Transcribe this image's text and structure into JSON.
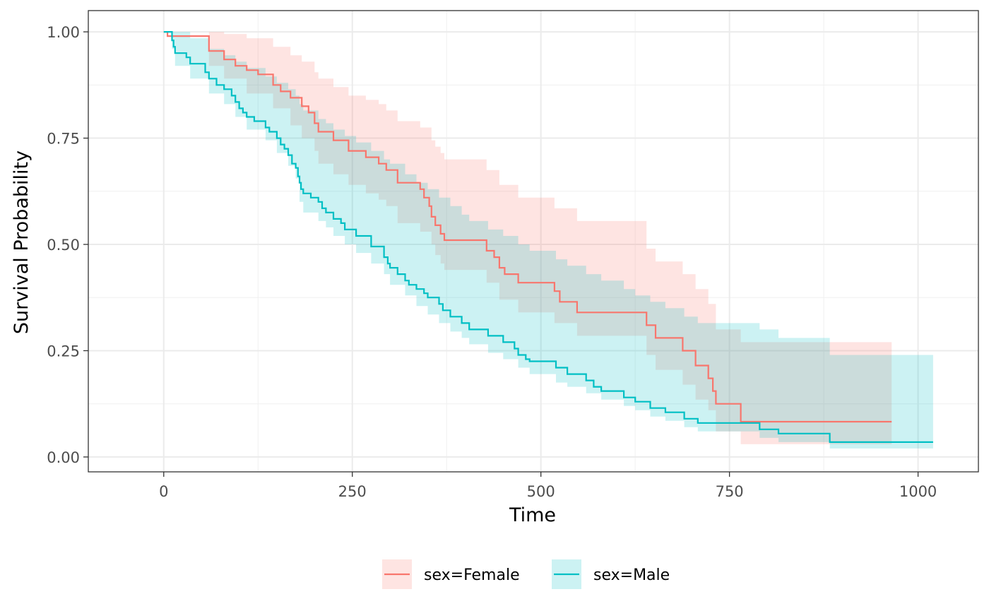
{
  "chart_data": {
    "type": "line",
    "subtype": "kaplan-meier-step",
    "title": "",
    "xlabel": "Time",
    "ylabel": "Survival Probability",
    "xlim": [
      -100,
      1080
    ],
    "ylim": [
      -0.035,
      1.05
    ],
    "x_ticks": [
      0,
      250,
      500,
      750,
      1000
    ],
    "x_tick_labels": [
      "0",
      "250",
      "500",
      "750",
      "1000"
    ],
    "y_ticks": [
      0,
      0.25,
      0.5,
      0.75,
      1
    ],
    "y_tick_labels": [
      "0.00",
      "0.25",
      "0.50",
      "0.75",
      "1.00"
    ],
    "grid": true,
    "legend_position": "bottom",
    "series": [
      {
        "name": "sex=Female",
        "color": "#F8766D",
        "fill_color": "#F8766D",
        "points": [
          [
            0,
            1.0
          ],
          [
            5,
            0.99
          ],
          [
            60,
            0.955
          ],
          [
            80,
            0.935
          ],
          [
            95,
            0.92
          ],
          [
            110,
            0.91
          ],
          [
            125,
            0.9
          ],
          [
            145,
            0.875
          ],
          [
            155,
            0.86
          ],
          [
            168,
            0.845
          ],
          [
            183,
            0.825
          ],
          [
            192,
            0.81
          ],
          [
            200,
            0.785
          ],
          [
            205,
            0.765
          ],
          [
            225,
            0.745
          ],
          [
            245,
            0.72
          ],
          [
            268,
            0.705
          ],
          [
            285,
            0.69
          ],
          [
            295,
            0.675
          ],
          [
            310,
            0.645
          ],
          [
            340,
            0.63
          ],
          [
            345,
            0.61
          ],
          [
            352,
            0.59
          ],
          [
            355,
            0.565
          ],
          [
            360,
            0.545
          ],
          [
            367,
            0.525
          ],
          [
            372,
            0.51
          ],
          [
            428,
            0.485
          ],
          [
            438,
            0.47
          ],
          [
            445,
            0.445
          ],
          [
            452,
            0.43
          ],
          [
            470,
            0.41
          ],
          [
            518,
            0.39
          ],
          [
            525,
            0.365
          ],
          [
            548,
            0.34
          ],
          [
            640,
            0.31
          ],
          [
            652,
            0.28
          ],
          [
            688,
            0.25
          ],
          [
            705,
            0.215
          ],
          [
            722,
            0.185
          ],
          [
            728,
            0.155
          ],
          [
            732,
            0.125
          ],
          [
            765,
            0.083
          ],
          [
            965,
            0.083
          ]
        ],
        "band": [
          [
            0,
            1.0,
            1.0
          ],
          [
            60,
            1.0,
            0.92
          ],
          [
            80,
            0.995,
            0.89
          ],
          [
            110,
            0.985,
            0.855
          ],
          [
            145,
            0.965,
            0.82
          ],
          [
            168,
            0.945,
            0.78
          ],
          [
            183,
            0.93,
            0.75
          ],
          [
            200,
            0.905,
            0.72
          ],
          [
            205,
            0.89,
            0.69
          ],
          [
            225,
            0.87,
            0.665
          ],
          [
            245,
            0.85,
            0.64
          ],
          [
            268,
            0.84,
            0.62
          ],
          [
            285,
            0.83,
            0.605
          ],
          [
            295,
            0.815,
            0.59
          ],
          [
            310,
            0.79,
            0.55
          ],
          [
            340,
            0.775,
            0.53
          ],
          [
            355,
            0.745,
            0.5
          ],
          [
            360,
            0.73,
            0.475
          ],
          [
            367,
            0.715,
            0.455
          ],
          [
            372,
            0.7,
            0.44
          ],
          [
            428,
            0.675,
            0.41
          ],
          [
            445,
            0.64,
            0.37
          ],
          [
            470,
            0.61,
            0.34
          ],
          [
            518,
            0.585,
            0.315
          ],
          [
            548,
            0.555,
            0.285
          ],
          [
            640,
            0.49,
            0.24
          ],
          [
            652,
            0.46,
            0.205
          ],
          [
            688,
            0.43,
            0.17
          ],
          [
            705,
            0.395,
            0.135
          ],
          [
            722,
            0.36,
            0.11
          ],
          [
            732,
            0.3,
            0.06
          ],
          [
            765,
            0.27,
            0.03
          ],
          [
            965,
            0.27,
            0.03
          ]
        ]
      },
      {
        "name": "sex=Male",
        "color": "#00BFC4",
        "fill_color": "#00BFC4",
        "points": [
          [
            0,
            1.0
          ],
          [
            11,
            0.98
          ],
          [
            13,
            0.965
          ],
          [
            15,
            0.95
          ],
          [
            30,
            0.94
          ],
          [
            35,
            0.925
          ],
          [
            55,
            0.905
          ],
          [
            60,
            0.89
          ],
          [
            70,
            0.875
          ],
          [
            80,
            0.865
          ],
          [
            90,
            0.85
          ],
          [
            95,
            0.835
          ],
          [
            100,
            0.82
          ],
          [
            105,
            0.81
          ],
          [
            110,
            0.8
          ],
          [
            120,
            0.79
          ],
          [
            135,
            0.775
          ],
          [
            140,
            0.765
          ],
          [
            150,
            0.75
          ],
          [
            155,
            0.735
          ],
          [
            160,
            0.725
          ],
          [
            165,
            0.71
          ],
          [
            170,
            0.69
          ],
          [
            175,
            0.68
          ],
          [
            178,
            0.66
          ],
          [
            180,
            0.645
          ],
          [
            182,
            0.63
          ],
          [
            185,
            0.62
          ],
          [
            195,
            0.61
          ],
          [
            205,
            0.6
          ],
          [
            210,
            0.585
          ],
          [
            215,
            0.575
          ],
          [
            225,
            0.56
          ],
          [
            235,
            0.55
          ],
          [
            240,
            0.535
          ],
          [
            255,
            0.52
          ],
          [
            275,
            0.495
          ],
          [
            292,
            0.47
          ],
          [
            297,
            0.455
          ],
          [
            300,
            0.445
          ],
          [
            310,
            0.43
          ],
          [
            320,
            0.415
          ],
          [
            325,
            0.405
          ],
          [
            335,
            0.395
          ],
          [
            345,
            0.385
          ],
          [
            350,
            0.375
          ],
          [
            365,
            0.36
          ],
          [
            370,
            0.345
          ],
          [
            380,
            0.33
          ],
          [
            395,
            0.315
          ],
          [
            405,
            0.3
          ],
          [
            430,
            0.285
          ],
          [
            450,
            0.27
          ],
          [
            465,
            0.255
          ],
          [
            470,
            0.24
          ],
          [
            480,
            0.23
          ],
          [
            485,
            0.225
          ],
          [
            520,
            0.21
          ],
          [
            535,
            0.195
          ],
          [
            560,
            0.18
          ],
          [
            570,
            0.165
          ],
          [
            580,
            0.155
          ],
          [
            610,
            0.14
          ],
          [
            625,
            0.13
          ],
          [
            645,
            0.115
          ],
          [
            665,
            0.105
          ],
          [
            690,
            0.09
          ],
          [
            708,
            0.08
          ],
          [
            790,
            0.065
          ],
          [
            815,
            0.055
          ],
          [
            883,
            0.035
          ],
          [
            1020,
            0.035
          ]
        ],
        "band": [
          [
            0,
            1.0,
            1.0
          ],
          [
            11,
            1.0,
            0.96
          ],
          [
            15,
            1.0,
            0.92
          ],
          [
            35,
            0.985,
            0.89
          ],
          [
            60,
            0.96,
            0.855
          ],
          [
            80,
            0.945,
            0.83
          ],
          [
            95,
            0.93,
            0.8
          ],
          [
            110,
            0.915,
            0.77
          ],
          [
            135,
            0.895,
            0.745
          ],
          [
            150,
            0.88,
            0.715
          ],
          [
            165,
            0.865,
            0.685
          ],
          [
            175,
            0.85,
            0.655
          ],
          [
            180,
            0.83,
            0.6
          ],
          [
            185,
            0.815,
            0.575
          ],
          [
            205,
            0.795,
            0.555
          ],
          [
            215,
            0.785,
            0.54
          ],
          [
            225,
            0.77,
            0.52
          ],
          [
            240,
            0.755,
            0.5
          ],
          [
            255,
            0.74,
            0.48
          ],
          [
            275,
            0.72,
            0.455
          ],
          [
            292,
            0.7,
            0.43
          ],
          [
            300,
            0.69,
            0.405
          ],
          [
            320,
            0.665,
            0.38
          ],
          [
            335,
            0.645,
            0.355
          ],
          [
            350,
            0.63,
            0.335
          ],
          [
            365,
            0.61,
            0.315
          ],
          [
            380,
            0.59,
            0.295
          ],
          [
            395,
            0.57,
            0.28
          ],
          [
            405,
            0.555,
            0.265
          ],
          [
            430,
            0.535,
            0.245
          ],
          [
            450,
            0.52,
            0.23
          ],
          [
            470,
            0.5,
            0.21
          ],
          [
            485,
            0.485,
            0.195
          ],
          [
            520,
            0.465,
            0.175
          ],
          [
            535,
            0.45,
            0.165
          ],
          [
            560,
            0.43,
            0.15
          ],
          [
            580,
            0.415,
            0.135
          ],
          [
            610,
            0.395,
            0.12
          ],
          [
            625,
            0.38,
            0.11
          ],
          [
            645,
            0.365,
            0.095
          ],
          [
            665,
            0.35,
            0.085
          ],
          [
            690,
            0.33,
            0.07
          ],
          [
            708,
            0.315,
            0.06
          ],
          [
            790,
            0.3,
            0.045
          ],
          [
            815,
            0.28,
            0.035
          ],
          [
            883,
            0.24,
            0.02
          ],
          [
            1020,
            0.24,
            0.02
          ]
        ]
      }
    ]
  }
}
